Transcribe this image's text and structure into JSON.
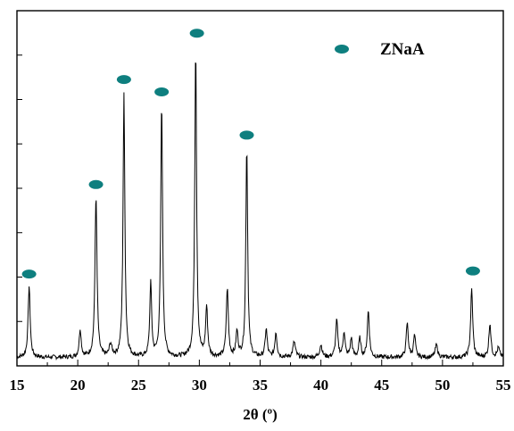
{
  "chart_data": {
    "type": "line",
    "title": "",
    "xlabel": "2θ (º)",
    "ylabel": "",
    "xlim": [
      15,
      55
    ],
    "ylim": [
      0,
      100
    ],
    "x_ticks": [
      15,
      20,
      25,
      30,
      35,
      40,
      45,
      50,
      55
    ],
    "x_tick_labels": [
      "15",
      "20",
      "25",
      "30",
      "35",
      "40",
      "45",
      "50",
      "55"
    ],
    "y_ticks": [
      0,
      12.5,
      25,
      37.5,
      50,
      62.5,
      75,
      87.5,
      100
    ],
    "y_tick_labels_shown": false,
    "grid": false,
    "legend": {
      "position": "top-right",
      "entries": [
        {
          "label": "ZNaA",
          "marker": "filled-ellipse",
          "color": "#0e7f7f"
        }
      ]
    },
    "series": [
      {
        "baseline": 1,
        "line_color": "#000000",
        "peaks": [
          {
            "x": 16.0,
            "y": 23,
            "w": 0.1
          },
          {
            "x": 20.2,
            "y": 9,
            "w": 0.1
          },
          {
            "x": 21.5,
            "y": 52,
            "w": 0.1
          },
          {
            "x": 22.7,
            "y": 4,
            "w": 0.12
          },
          {
            "x": 23.8,
            "y": 85,
            "w": 0.09
          },
          {
            "x": 26.0,
            "y": 24,
            "w": 0.09
          },
          {
            "x": 26.9,
            "y": 82,
            "w": 0.09
          },
          {
            "x": 29.7,
            "y": 100,
            "w": 0.09
          },
          {
            "x": 30.6,
            "y": 16,
            "w": 0.1
          },
          {
            "x": 32.3,
            "y": 22,
            "w": 0.1
          },
          {
            "x": 33.1,
            "y": 8,
            "w": 0.1
          },
          {
            "x": 33.9,
            "y": 68,
            "w": 0.09
          },
          {
            "x": 35.5,
            "y": 9,
            "w": 0.1
          },
          {
            "x": 36.3,
            "y": 8,
            "w": 0.1
          },
          {
            "x": 37.8,
            "y": 5,
            "w": 0.12
          },
          {
            "x": 40.0,
            "y": 4,
            "w": 0.12
          },
          {
            "x": 41.3,
            "y": 12,
            "w": 0.1
          },
          {
            "x": 41.9,
            "y": 8,
            "w": 0.1
          },
          {
            "x": 42.5,
            "y": 6,
            "w": 0.1
          },
          {
            "x": 43.2,
            "y": 6,
            "w": 0.1
          },
          {
            "x": 43.9,
            "y": 15,
            "w": 0.1
          },
          {
            "x": 47.1,
            "y": 11,
            "w": 0.1
          },
          {
            "x": 47.7,
            "y": 7,
            "w": 0.1
          },
          {
            "x": 49.5,
            "y": 4,
            "w": 0.12
          },
          {
            "x": 52.4,
            "y": 22,
            "w": 0.1
          },
          {
            "x": 53.9,
            "y": 11,
            "w": 0.1
          },
          {
            "x": 54.6,
            "y": 3,
            "w": 0.12
          }
        ]
      }
    ],
    "markers": [
      {
        "x": 16.0,
        "y": 28
      },
      {
        "x": 21.5,
        "y": 57
      },
      {
        "x": 23.8,
        "y": 91
      },
      {
        "x": 26.9,
        "y": 87
      },
      {
        "x": 29.8,
        "y": 106
      },
      {
        "x": 33.9,
        "y": 73
      },
      {
        "x": 52.5,
        "y": 29
      }
    ]
  }
}
